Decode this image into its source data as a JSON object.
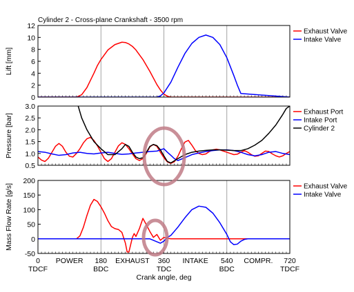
{
  "chart_data": [
    {
      "type": "line",
      "title": "Cylinder 2 - Cross-plane Crankshaft - 3500 rpm",
      "ylabel": "Lift [mm]",
      "xlim": [
        0,
        720
      ],
      "ylim": [
        0,
        12
      ],
      "yticks": [
        0,
        2,
        4,
        6,
        8,
        10,
        12
      ],
      "vlines": [
        180,
        360,
        540
      ],
      "legend": "right-top",
      "series": [
        {
          "name": "Exhaust Valve",
          "color": "#ff0000",
          "x": [
            0,
            110,
            125,
            140,
            150,
            160,
            170,
            180,
            200,
            220,
            240,
            250,
            260,
            270,
            280,
            300,
            320,
            340,
            350,
            360,
            370,
            380,
            400,
            720
          ],
          "y": [
            0,
            0,
            0.4,
            1.6,
            2.8,
            4.0,
            5.3,
            6.3,
            7.9,
            8.8,
            9.2,
            9.15,
            8.9,
            8.5,
            7.9,
            6.3,
            4.3,
            2.1,
            1.2,
            0.5,
            0.15,
            0,
            0,
            0
          ]
        },
        {
          "name": "Intake Valve",
          "color": "#0000ff",
          "x": [
            0,
            340,
            350,
            360,
            380,
            400,
            420,
            440,
            460,
            480,
            500,
            520,
            540,
            560,
            570,
            580,
            720
          ],
          "y": [
            0,
            0,
            0.2,
            0.7,
            2.5,
            5.0,
            7.3,
            9.0,
            10.0,
            10.4,
            10.0,
            8.8,
            6.6,
            3.6,
            2.0,
            0.6,
            0
          ]
        }
      ]
    },
    {
      "type": "line",
      "ylabel": "Pressure [bar]",
      "xlim": [
        0,
        720
      ],
      "ylim": [
        0.5,
        3.0
      ],
      "yticks": [
        0.5,
        1.0,
        1.5,
        2.0,
        2.5,
        3.0
      ],
      "vlines": [
        180,
        360,
        540
      ],
      "legend": "right-top",
      "series": [
        {
          "name": "Exhaust Port",
          "color": "#ff0000",
          "x": [
            0,
            10,
            20,
            30,
            40,
            50,
            60,
            70,
            80,
            90,
            100,
            110,
            120,
            130,
            140,
            150,
            160,
            170,
            180,
            190,
            200,
            210,
            220,
            230,
            240,
            250,
            260,
            270,
            280,
            290,
            300,
            310,
            320,
            330,
            340,
            350,
            360,
            370,
            380,
            390,
            400,
            410,
            420,
            430,
            440,
            450,
            460,
            470,
            480,
            490,
            500,
            510,
            520,
            530,
            540,
            550,
            560,
            570,
            580,
            590,
            600,
            610,
            620,
            630,
            640,
            650,
            660,
            670,
            680,
            690,
            700,
            710,
            720
          ],
          "y": [
            0.85,
            0.72,
            0.66,
            0.8,
            1.05,
            1.3,
            1.42,
            1.3,
            1.05,
            0.88,
            0.85,
            1.0,
            1.2,
            1.45,
            1.62,
            1.68,
            1.55,
            1.32,
            1.05,
            0.78,
            0.66,
            0.78,
            1.05,
            1.32,
            1.45,
            1.38,
            1.2,
            0.98,
            0.78,
            0.7,
            0.78,
            1.0,
            1.28,
            1.38,
            1.3,
            1.05,
            0.82,
            0.64,
            0.58,
            0.65,
            0.88,
            1.2,
            1.48,
            1.55,
            1.35,
            1.12,
            1.0,
            0.95,
            0.98,
            1.08,
            1.15,
            1.18,
            1.15,
            1.1,
            1.05,
            1.0,
            0.95,
            0.97,
            1.05,
            1.12,
            1.05,
            0.95,
            0.88,
            0.9,
            1.0,
            1.1,
            1.08,
            0.98,
            0.9,
            0.85,
            0.9,
            1.0,
            1.08
          ]
        },
        {
          "name": "Intake Port",
          "color": "#0000ff",
          "x": [
            0,
            20,
            40,
            60,
            80,
            100,
            120,
            140,
            160,
            180,
            200,
            220,
            240,
            260,
            280,
            300,
            320,
            340,
            350,
            360,
            370,
            380,
            390,
            400,
            420,
            440,
            460,
            480,
            500,
            520,
            540,
            560,
            580,
            600,
            620,
            640,
            660,
            680,
            700,
            720
          ],
          "y": [
            1.08,
            1.05,
            0.98,
            0.92,
            0.95,
            1.02,
            1.05,
            1.0,
            0.98,
            1.02,
            1.05,
            1.0,
            0.96,
            0.98,
            1.02,
            1.05,
            1.08,
            1.1,
            1.15,
            1.2,
            1.05,
            0.92,
            0.78,
            0.7,
            0.82,
            0.95,
            1.02,
            1.08,
            1.12,
            1.15,
            1.15,
            1.12,
            1.05,
            0.95,
            0.9,
            0.95,
            1.05,
            1.08,
            1.0,
            0.95
          ]
        },
        {
          "name": "Cylinder 2",
          "color": "#000000",
          "x": [
            115,
            125,
            140,
            160,
            180,
            200,
            220,
            240,
            250,
            260,
            270,
            280,
            290,
            300,
            310,
            320,
            330,
            340,
            350,
            360,
            370,
            380,
            400,
            420,
            440,
            460,
            480,
            500,
            520,
            540,
            560,
            580,
            600,
            620,
            640,
            660,
            680,
            700,
            710,
            720
          ],
          "y": [
            3.0,
            2.5,
            2.0,
            1.5,
            1.2,
            0.95,
            0.95,
            1.2,
            1.38,
            1.3,
            1.05,
            0.85,
            0.78,
            0.82,
            1.05,
            1.3,
            1.38,
            1.33,
            1.15,
            0.9,
            0.66,
            0.6,
            0.78,
            0.95,
            1.05,
            1.1,
            1.13,
            1.15,
            1.15,
            1.14,
            1.12,
            1.12,
            1.2,
            1.35,
            1.55,
            1.85,
            2.2,
            2.65,
            2.9,
            3.0
          ]
        }
      ]
    },
    {
      "type": "line",
      "ylabel": "Mass Flow Rate [g/s]",
      "xlabel": "Crank angle, deg",
      "xlim": [
        0,
        720
      ],
      "ylim": [
        -50,
        200
      ],
      "yticks": [
        -50,
        0,
        50,
        100,
        150,
        200
      ],
      "xticks": [
        0,
        180,
        360,
        540,
        720
      ],
      "xtick_sublabels": [
        "TDCF",
        "BDC",
        "TDC",
        "BDC",
        "TDCF"
      ],
      "stroke_labels": [
        {
          "text": "POWER",
          "x": 90
        },
        {
          "text": "EXHAUST",
          "x": 270
        },
        {
          "text": "INTAKE",
          "x": 450
        },
        {
          "text": "COMPR.",
          "x": 630
        }
      ],
      "vlines": [
        180,
        360,
        540
      ],
      "legend": "right-top",
      "series": [
        {
          "name": "Exhaust Valve",
          "color": "#ff0000",
          "x": [
            0,
            110,
            120,
            130,
            140,
            150,
            160,
            170,
            180,
            190,
            200,
            210,
            220,
            230,
            240,
            250,
            255,
            260,
            265,
            270,
            275,
            280,
            290,
            300,
            310,
            320,
            330,
            340,
            350,
            360,
            370,
            380,
            720
          ],
          "y": [
            0,
            0,
            10,
            40,
            80,
            115,
            135,
            128,
            110,
            88,
            62,
            42,
            35,
            32,
            22,
            -15,
            -45,
            -45,
            -20,
            5,
            18,
            8,
            35,
            70,
            48,
            25,
            5,
            15,
            -5,
            5,
            2,
            0,
            0
          ]
        },
        {
          "name": "Intake Valve",
          "color": "#0000ff",
          "x": [
            0,
            320,
            330,
            340,
            350,
            360,
            370,
            380,
            400,
            420,
            440,
            460,
            480,
            500,
            520,
            540,
            550,
            560,
            570,
            580,
            590,
            600,
            720
          ],
          "y": [
            0,
            0,
            -5,
            -10,
            -15,
            -8,
            5,
            12,
            40,
            72,
            100,
            112,
            108,
            88,
            55,
            15,
            -10,
            -20,
            -18,
            -8,
            -2,
            0,
            0
          ]
        }
      ]
    }
  ]
}
